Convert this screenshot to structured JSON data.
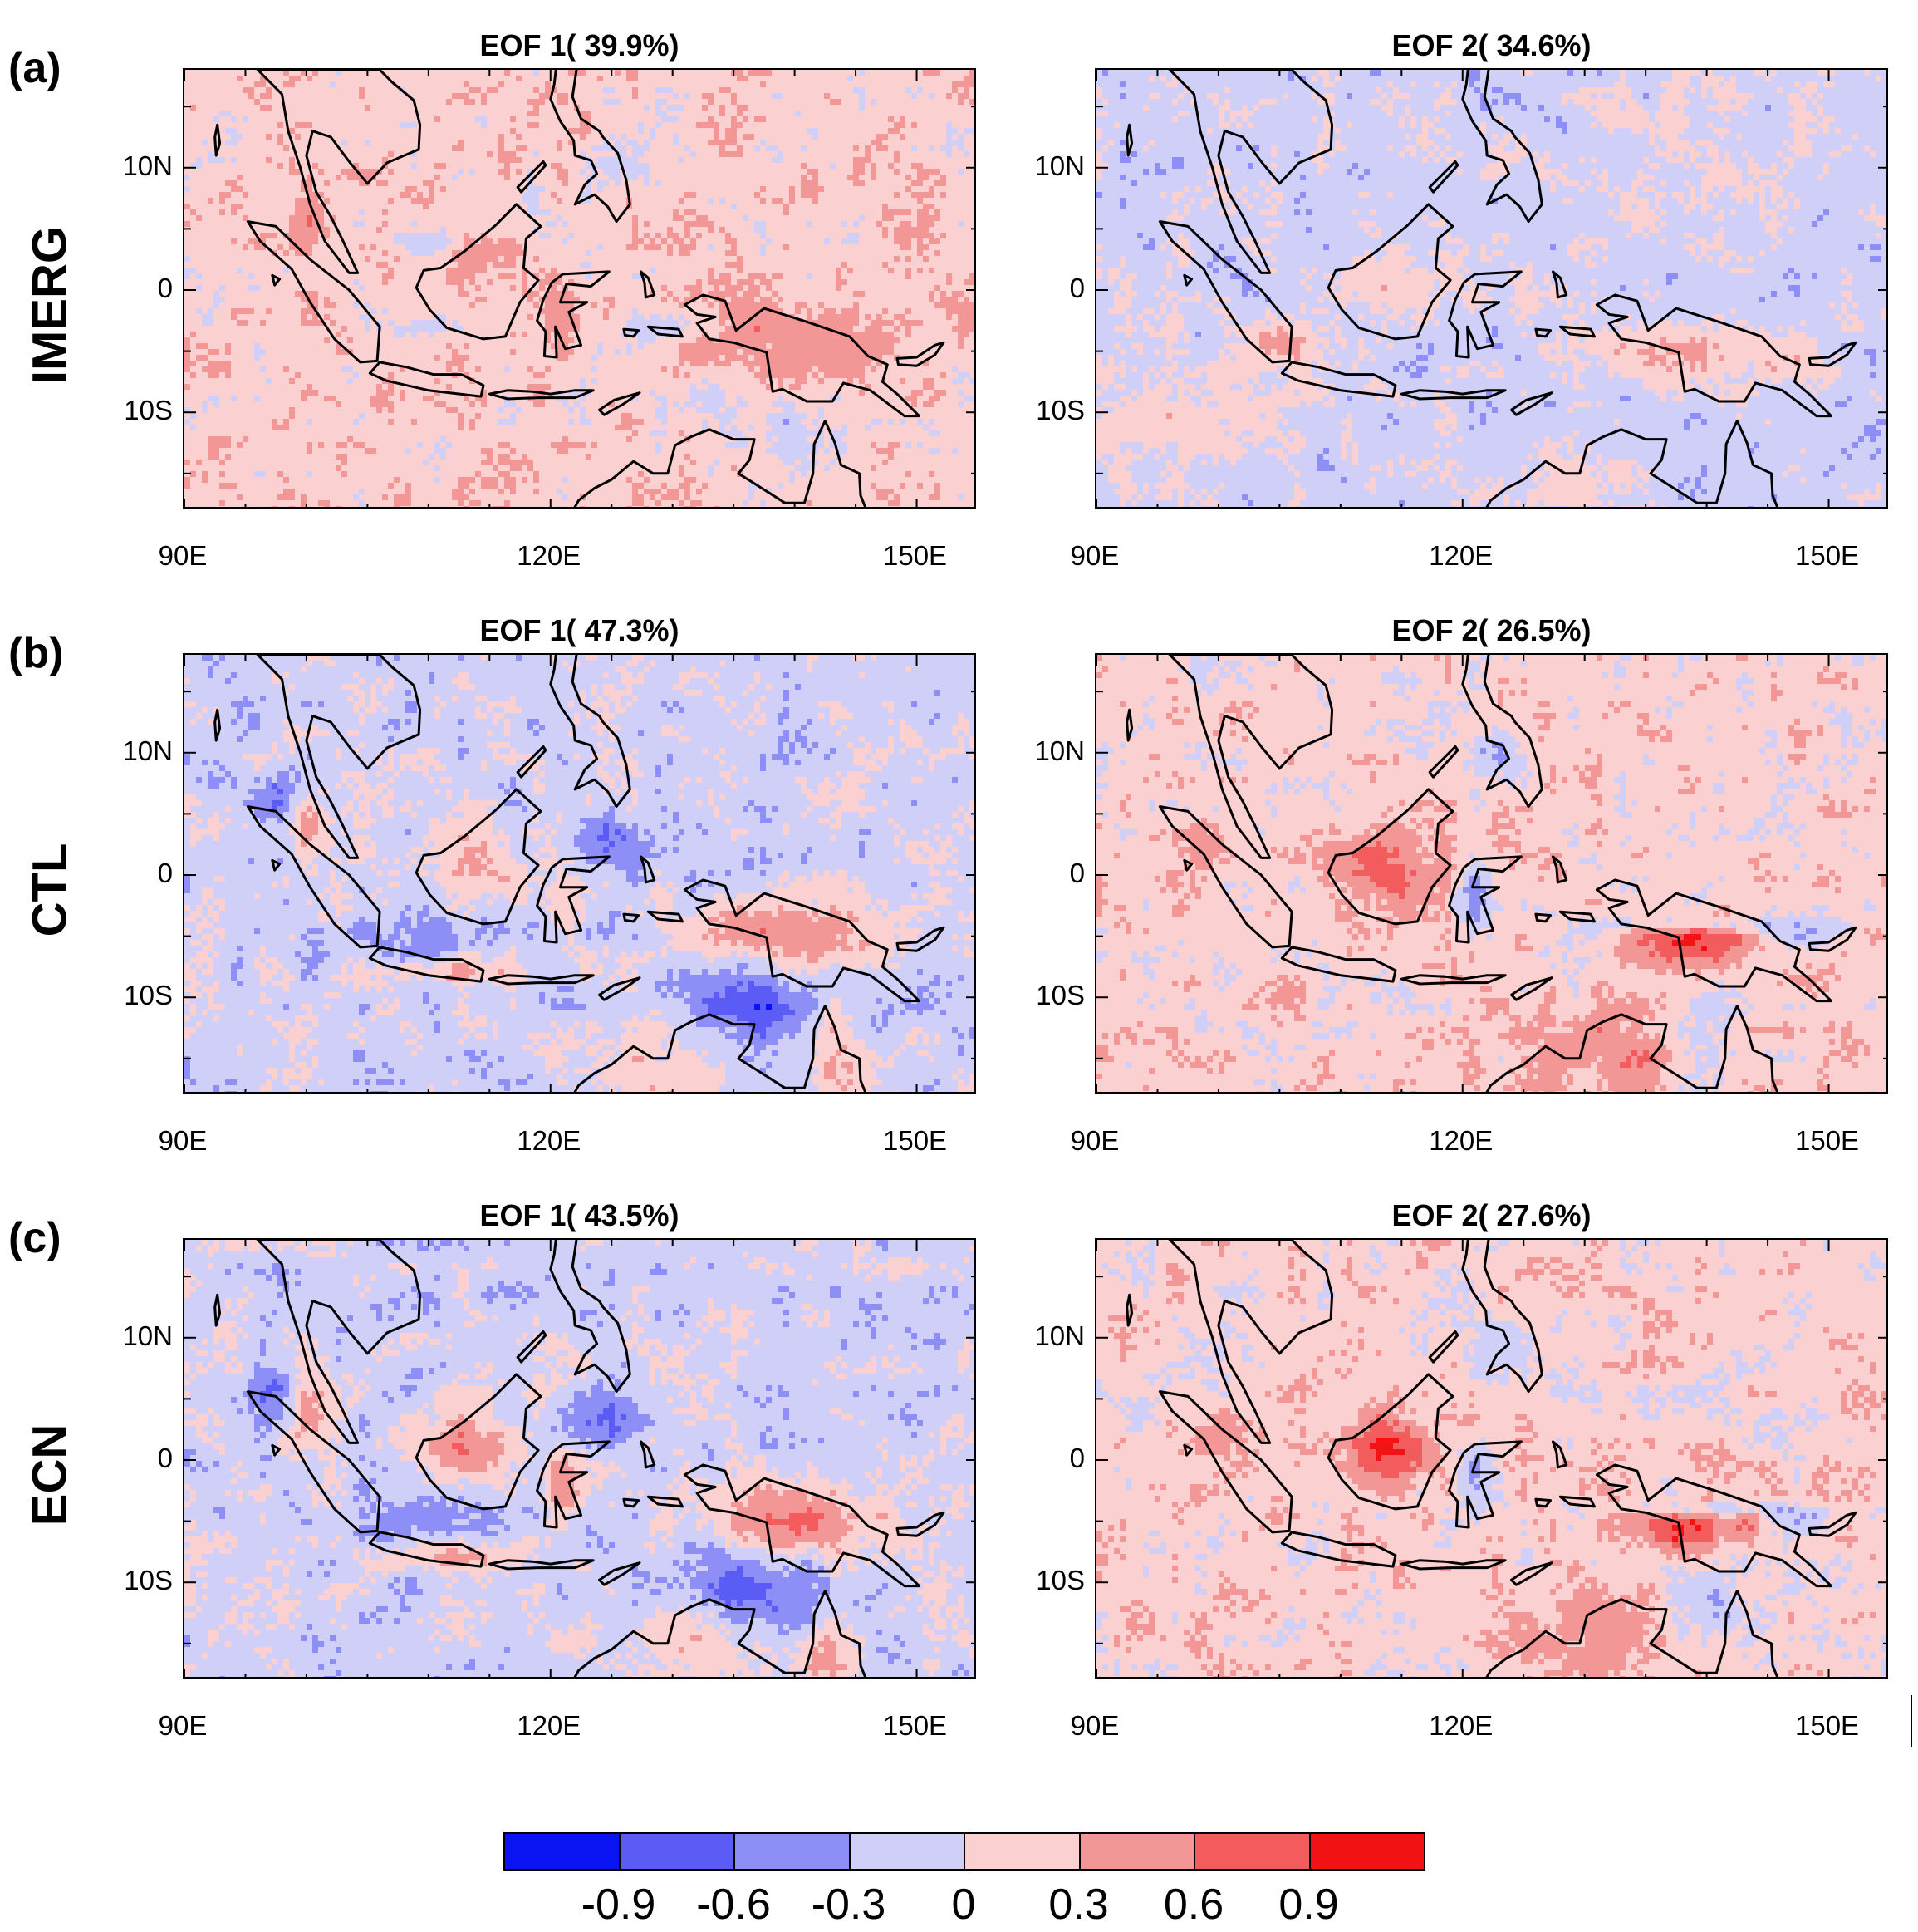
{
  "rows": [
    {
      "tag": "(a)",
      "label": "IMERG",
      "panels": [
        {
          "title": "EOF 1( 39.9%)",
          "pattern": "eof1_weak"
        },
        {
          "title": "EOF 2( 34.6%)",
          "pattern": "eof2_weak"
        }
      ]
    },
    {
      "tag": "(b)",
      "label": "CTL",
      "panels": [
        {
          "title": "EOF 1( 47.3%)",
          "pattern": "eof1_strong"
        },
        {
          "title": "EOF 2( 26.5%)",
          "pattern": "eof2_strong"
        }
      ]
    },
    {
      "tag": "(c)",
      "label": "ECN",
      "panels": [
        {
          "title": "EOF 1( 43.5%)",
          "pattern": "eof1_strong"
        },
        {
          "title": "EOF 2( 27.6%)",
          "pattern": "eof2_strong"
        }
      ]
    }
  ],
  "axes": {
    "y_ticks": [
      "10N",
      "0",
      "10S"
    ],
    "x_ticks": [
      "90E",
      "120E",
      "150E"
    ],
    "lon_range": [
      90,
      155
    ],
    "lat_range": [
      -18,
      18
    ]
  },
  "colorbar": {
    "labels": [
      "-0.9",
      "-0.6",
      "-0.3",
      "0",
      "0.3",
      "0.6",
      "0.9"
    ],
    "colors": [
      "#0a14f2",
      "#5a5cf5",
      "#8e8ef7",
      "#cfcff8",
      "#fbd0d0",
      "#f39696",
      "#f25c5c",
      "#f21414"
    ]
  }
}
